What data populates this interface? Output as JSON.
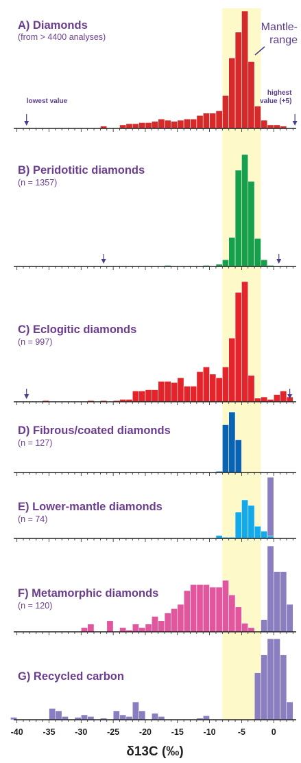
{
  "chart_data": {
    "type": "bar",
    "xlabel": "δ13C (‰)",
    "xlim": [
      -40.5,
      3.5
    ],
    "bin_width": 1,
    "x_ticks": [
      -40,
      -35,
      -30,
      -25,
      -20,
      -15,
      -10,
      -5,
      0
    ],
    "x_tick_labels": [
      "-40",
      "-35",
      "-30",
      "-25",
      "-20",
      "-15",
      "-10",
      "-5",
      "0"
    ],
    "mantle_range": {
      "label": "Mantle-range",
      "x0": -8,
      "x1": -2,
      "color": "#fdf9c8"
    },
    "panels": [
      {
        "id": "A",
        "title": "A) Diamonds",
        "subtitle": "(from > 4400 analyses)",
        "color": "#d42a2a",
        "ymax": 100,
        "annotations": [
          {
            "text": "lowest value",
            "x": -38.5,
            "arrow_x": -38.5,
            "align": "start"
          },
          {
            "text": "highest value (+5)",
            "x": 2.8,
            "arrow_x": 3.3,
            "align": "end"
          }
        ],
        "bins": [
          {
            "x": -26.5,
            "v": 2
          },
          {
            "x": -23.5,
            "v": 3
          },
          {
            "x": -22.5,
            "v": 4
          },
          {
            "x": -21.5,
            "v": 4
          },
          {
            "x": -20.5,
            "v": 5
          },
          {
            "x": -19.5,
            "v": 5
          },
          {
            "x": -18.5,
            "v": 6
          },
          {
            "x": -17.5,
            "v": 8
          },
          {
            "x": -16.5,
            "v": 7
          },
          {
            "x": -15.5,
            "v": 6
          },
          {
            "x": -14.5,
            "v": 7
          },
          {
            "x": -13.5,
            "v": 8
          },
          {
            "x": -12.5,
            "v": 8
          },
          {
            "x": -11.5,
            "v": 11
          },
          {
            "x": -10.5,
            "v": 13
          },
          {
            "x": -9.5,
            "v": 13
          },
          {
            "x": -8.5,
            "v": 15
          },
          {
            "x": -7.5,
            "v": 28
          },
          {
            "x": -6.5,
            "v": 60
          },
          {
            "x": -5.5,
            "v": 82
          },
          {
            "x": -4.5,
            "v": 100
          },
          {
            "x": -3.5,
            "v": 57
          },
          {
            "x": -2.5,
            "v": 19
          },
          {
            "x": -1.5,
            "v": 7
          },
          {
            "x": -0.5,
            "v": 3
          },
          {
            "x": 0.5,
            "v": 3
          },
          {
            "x": 1.5,
            "v": 2
          }
        ]
      },
      {
        "id": "B",
        "title": "B) Peridotitic diamonds",
        "subtitle": "(n = 1357)",
        "color": "#17a04a",
        "ymax": 100,
        "annotations": [
          {
            "text": "",
            "x": -26.5,
            "arrow_x": -26.5,
            "align": "middle"
          },
          {
            "text": "",
            "x": 0.8,
            "arrow_x": 0.8,
            "align": "middle"
          }
        ],
        "bins": [
          {
            "x": -16.5,
            "v": 1
          },
          {
            "x": -10.5,
            "v": 1
          },
          {
            "x": -8.5,
            "v": 2
          },
          {
            "x": -7.5,
            "v": 6
          },
          {
            "x": -6.5,
            "v": 26
          },
          {
            "x": -5.5,
            "v": 86
          },
          {
            "x": -4.5,
            "v": 100
          },
          {
            "x": -3.5,
            "v": 76
          },
          {
            "x": -2.5,
            "v": 25
          },
          {
            "x": -1.5,
            "v": 6
          },
          {
            "x": -0.5,
            "v": 1
          }
        ]
      },
      {
        "id": "C",
        "title": "C) Eclogitic diamonds",
        "subtitle": "(n = 997)",
        "color": "#e3242b",
        "ymax": 100,
        "annotations": [
          {
            "text": "",
            "x": -38.5,
            "arrow_x": -38.5,
            "align": "middle"
          },
          {
            "text": "",
            "x": 2.5,
            "arrow_x": 2.5,
            "align": "middle"
          }
        ],
        "bins": [
          {
            "x": -35.5,
            "v": 1
          },
          {
            "x": -28.5,
            "v": 1
          },
          {
            "x": -26.5,
            "v": 1
          },
          {
            "x": -24.5,
            "v": 1
          },
          {
            "x": -23.5,
            "v": 2
          },
          {
            "x": -22.5,
            "v": 2
          },
          {
            "x": -21.5,
            "v": 9
          },
          {
            "x": -20.5,
            "v": 9
          },
          {
            "x": -19.5,
            "v": 10
          },
          {
            "x": -18.5,
            "v": 10
          },
          {
            "x": -17.5,
            "v": 17
          },
          {
            "x": -16.5,
            "v": 17
          },
          {
            "x": -15.5,
            "v": 16
          },
          {
            "x": -14.5,
            "v": 20
          },
          {
            "x": -13.5,
            "v": 13
          },
          {
            "x": -12.5,
            "v": 13
          },
          {
            "x": -11.5,
            "v": 25
          },
          {
            "x": -10.5,
            "v": 29
          },
          {
            "x": -9.5,
            "v": 23
          },
          {
            "x": -8.5,
            "v": 20
          },
          {
            "x": -7.5,
            "v": 29
          },
          {
            "x": -6.5,
            "v": 53
          },
          {
            "x": -5.5,
            "v": 91
          },
          {
            "x": -4.5,
            "v": 100
          },
          {
            "x": -3.5,
            "v": 22
          },
          {
            "x": -2.5,
            "v": 3
          },
          {
            "x": -1.5,
            "v": 4
          },
          {
            "x": -0.5,
            "v": 2
          },
          {
            "x": 0.5,
            "v": 6
          },
          {
            "x": 1.5,
            "v": 9
          },
          {
            "x": 2.5,
            "v": 4
          }
        ]
      },
      {
        "id": "D",
        "title": "D) Fibrous/coated diamonds",
        "subtitle": "(n = 127)",
        "color": "#0a63b0",
        "ymax": 100,
        "annotations": [],
        "bins": [
          {
            "x": -8.5,
            "v": 2
          },
          {
            "x": -7.5,
            "v": 79
          },
          {
            "x": -6.5,
            "v": 100
          },
          {
            "x": -5.5,
            "v": 54
          }
        ]
      },
      {
        "id": "E",
        "title": "E) Lower-mantle diamonds",
        "subtitle": "(n = 74)",
        "color": "#14aaea",
        "ymax": 100,
        "annotations": [],
        "overlay_bins": [
          {
            "x": -0.5,
            "v": 100
          }
        ],
        "bins": [
          {
            "x": -8.5,
            "v": 5
          },
          {
            "x": -7.5,
            "v": 2
          },
          {
            "x": -6.5,
            "v": 2
          },
          {
            "x": -5.5,
            "v": 43
          },
          {
            "x": -4.5,
            "v": 63
          },
          {
            "x": -3.5,
            "v": 54
          },
          {
            "x": -2.5,
            "v": 20
          },
          {
            "x": -1.5,
            "v": 12
          },
          {
            "x": -0.5,
            "v": 4
          }
        ]
      },
      {
        "id": "F",
        "title": "F) Metamorphic diamonds",
        "subtitle": "(n = 120)",
        "color": "#e1579e",
        "ymax": 100,
        "annotations": [],
        "overlay_bins": [
          {
            "x": -1.5,
            "v": 14
          },
          {
            "x": -0.5,
            "v": 100
          },
          {
            "x": 0.5,
            "v": 70
          },
          {
            "x": 1.5,
            "v": 70
          },
          {
            "x": 2.5,
            "v": 32
          }
        ],
        "bins": [
          {
            "x": -29.5,
            "v": 5
          },
          {
            "x": -28.5,
            "v": 9
          },
          {
            "x": -25.5,
            "v": 13
          },
          {
            "x": -23.5,
            "v": 5
          },
          {
            "x": -22.5,
            "v": 2
          },
          {
            "x": -21.5,
            "v": 9
          },
          {
            "x": -20.5,
            "v": 5
          },
          {
            "x": -19.5,
            "v": 9
          },
          {
            "x": -18.5,
            "v": 18
          },
          {
            "x": -17.5,
            "v": 13
          },
          {
            "x": -16.5,
            "v": 22
          },
          {
            "x": -15.5,
            "v": 27
          },
          {
            "x": -14.5,
            "v": 32
          },
          {
            "x": -13.5,
            "v": 48
          },
          {
            "x": -12.5,
            "v": 55
          },
          {
            "x": -11.5,
            "v": 55
          },
          {
            "x": -10.5,
            "v": 55
          },
          {
            "x": -9.5,
            "v": 52
          },
          {
            "x": -8.5,
            "v": 52
          },
          {
            "x": -7.5,
            "v": 60
          },
          {
            "x": -6.5,
            "v": 43
          },
          {
            "x": -5.5,
            "v": 29
          },
          {
            "x": -4.5,
            "v": 10
          },
          {
            "x": -3.5,
            "v": 5
          }
        ]
      },
      {
        "id": "G",
        "title": "G) Recycled carbon",
        "subtitle": "",
        "color": "#8b7ec0",
        "ymax": 100,
        "annotations": [],
        "bins": [
          {
            "x": -40.5,
            "v": 3
          },
          {
            "x": -34.5,
            "v": 14
          },
          {
            "x": -33.5,
            "v": 11
          },
          {
            "x": -32.5,
            "v": 4
          },
          {
            "x": -30.5,
            "v": 3
          },
          {
            "x": -29.5,
            "v": 6
          },
          {
            "x": -28.5,
            "v": 4
          },
          {
            "x": -26.5,
            "v": 2
          },
          {
            "x": -24.5,
            "v": 11
          },
          {
            "x": -23.5,
            "v": 6
          },
          {
            "x": -22.5,
            "v": 4
          },
          {
            "x": -21.5,
            "v": 22
          },
          {
            "x": -20.5,
            "v": 11
          },
          {
            "x": -18.5,
            "v": 8
          },
          {
            "x": -17.5,
            "v": 4
          },
          {
            "x": -11.5,
            "v": 2
          },
          {
            "x": -10.5,
            "v": 5
          },
          {
            "x": -2.5,
            "v": 58
          },
          {
            "x": -1.5,
            "v": 80
          },
          {
            "x": -0.5,
            "v": 100
          },
          {
            "x": 0.5,
            "v": 100
          },
          {
            "x": 1.5,
            "v": 80
          },
          {
            "x": 2.5,
            "v": 22
          }
        ]
      }
    ]
  }
}
